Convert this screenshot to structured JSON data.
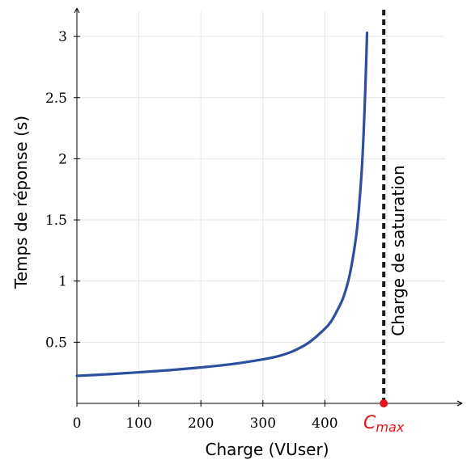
{
  "chart_data": {
    "type": "line",
    "xlabel": "Charge (VUser)",
    "ylabel": "Temps de réponse (s)",
    "x_ticks": [
      "0",
      "100",
      "200",
      "300",
      "400"
    ],
    "y_ticks": [
      "0.5",
      "1",
      "1.5",
      "2",
      "2.5",
      "3"
    ],
    "xlim": [
      0,
      600
    ],
    "ylim": [
      0,
      3.25
    ],
    "grid": true,
    "series": [
      {
        "color": "#2e4e9e",
        "points": [
          [
            0,
            0.225
          ],
          [
            50,
            0.238
          ],
          [
            100,
            0.254
          ],
          [
            150,
            0.272
          ],
          [
            200,
            0.294
          ],
          [
            250,
            0.321
          ],
          [
            300,
            0.36
          ],
          [
            325,
            0.386
          ],
          [
            350,
            0.43
          ],
          [
            375,
            0.5
          ],
          [
            400,
            0.61
          ],
          [
            410,
            0.67
          ],
          [
            420,
            0.76
          ],
          [
            430,
            0.87
          ],
          [
            440,
            1.05
          ],
          [
            450,
            1.35
          ],
          [
            455,
            1.6
          ],
          [
            460,
            1.95
          ],
          [
            464,
            2.4
          ],
          [
            467,
            2.85
          ],
          [
            468,
            3.03
          ]
        ]
      }
    ],
    "saturation": {
      "x": 495,
      "label": "Charge de saturation",
      "marker_main": "C",
      "marker_sub": "max",
      "marker_color": "#e8121b",
      "line_color": "#1a1a1a"
    }
  }
}
